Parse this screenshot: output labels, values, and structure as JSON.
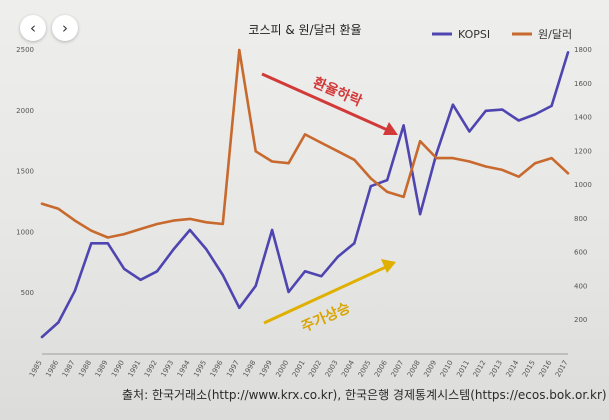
{
  "nav": {
    "prev_icon": "‹",
    "next_icon": "›"
  },
  "source_text": "출처: 한국거래소(http://www.krx.co.kr), 한국은행 경제통계시스템(https://ecos.bok.or.kr)",
  "chart_data": {
    "type": "line",
    "title": "코스피 & 원/달러 환율",
    "categories": [
      "1985",
      "1986",
      "1987",
      "1988",
      "1989",
      "1990",
      "1991",
      "1992",
      "1993",
      "1994",
      "1995",
      "1996",
      "1997",
      "1998",
      "1999",
      "2000",
      "2001",
      "2002",
      "2003",
      "2004",
      "2005",
      "2006",
      "2007",
      "2008",
      "2009",
      "2010",
      "2011",
      "2012",
      "2013",
      "2014",
      "2015",
      "2016",
      "2017"
    ],
    "series": [
      {
        "name": "KOPSI",
        "axis": "left",
        "color": "#4f45b0",
        "values": [
          140,
          260,
          520,
          910,
          910,
          700,
          610,
          680,
          860,
          1020,
          860,
          650,
          380,
          560,
          1020,
          510,
          680,
          640,
          800,
          910,
          1380,
          1430,
          1880,
          1150,
          1650,
          2050,
          1830,
          2000,
          2010,
          1920,
          1970,
          2040,
          2480
        ]
      },
      {
        "name": "원/달러",
        "axis": "right",
        "color": "#c8692e",
        "values": [
          890,
          860,
          790,
          730,
          690,
          710,
          740,
          770,
          790,
          800,
          780,
          770,
          1800,
          1200,
          1140,
          1130,
          1300,
          1250,
          1200,
          1150,
          1040,
          960,
          930,
          1260,
          1160,
          1160,
          1140,
          1110,
          1090,
          1050,
          1130,
          1160,
          1070
        ]
      }
    ],
    "y_left": {
      "min": 0,
      "max": 2500,
      "ticks": [
        500,
        1000,
        1500,
        2000,
        2500
      ]
    },
    "y_right": {
      "min": 0,
      "max": 1800,
      "ticks": [
        200,
        400,
        600,
        800,
        1000,
        1200,
        1400,
        1600,
        1800
      ]
    },
    "legend": [
      "KOPSI",
      "원/달러"
    ],
    "legend_position": "top-right",
    "annotations": [
      {
        "text": "환율하락",
        "color": "#d23a3a",
        "direction": "down"
      },
      {
        "text": "주가상승",
        "color": "#d9a400",
        "direction": "up"
      }
    ]
  }
}
